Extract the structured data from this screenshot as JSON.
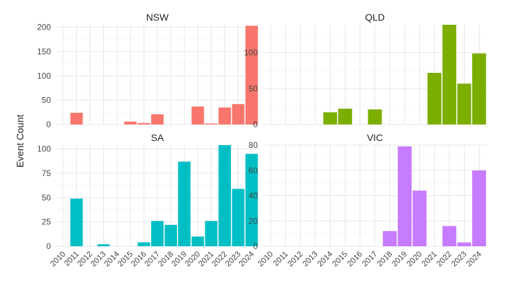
{
  "chart_data": {
    "type": "bar",
    "ylabel": "Event Count",
    "xlabel": "",
    "x": [
      "2010",
      "2011",
      "2012",
      "2013",
      "2014",
      "2015",
      "2016",
      "2017",
      "2018",
      "2019",
      "2020",
      "2021",
      "2022",
      "2023",
      "2024"
    ],
    "grid": true,
    "legend": "none",
    "panels": [
      {
        "name": "NSW",
        "color": "#F8766D",
        "ylim": [
          0,
          205
        ],
        "yticks": [
          0,
          50,
          100,
          150,
          200
        ],
        "values": [
          0,
          24,
          0,
          0,
          0,
          6,
          3,
          21,
          0,
          0,
          37,
          2,
          35,
          42,
          203
        ]
      },
      {
        "name": "QLD",
        "color": "#7CAE00",
        "ylim": [
          0,
          139
        ],
        "yticks": [
          0,
          50,
          100
        ],
        "values": [
          0,
          0,
          0,
          0,
          17,
          22,
          0,
          21,
          0,
          0,
          0,
          72,
          139,
          57,
          99
        ]
      },
      {
        "name": "SA",
        "color": "#00BFC4",
        "ylim": [
          0,
          104
        ],
        "yticks": [
          0,
          25,
          50,
          75,
          100
        ],
        "values": [
          0,
          49,
          0,
          2,
          0,
          0,
          4,
          26,
          22,
          87,
          10,
          26,
          104,
          59,
          95
        ]
      },
      {
        "name": "VIC",
        "color": "#C77CFF",
        "ylim": [
          0,
          80
        ],
        "yticks": [
          0,
          20,
          40,
          60,
          80
        ],
        "values": [
          0,
          0,
          0,
          0,
          0,
          0,
          0,
          0,
          12,
          79,
          44,
          0,
          16,
          3,
          60
        ]
      }
    ]
  }
}
